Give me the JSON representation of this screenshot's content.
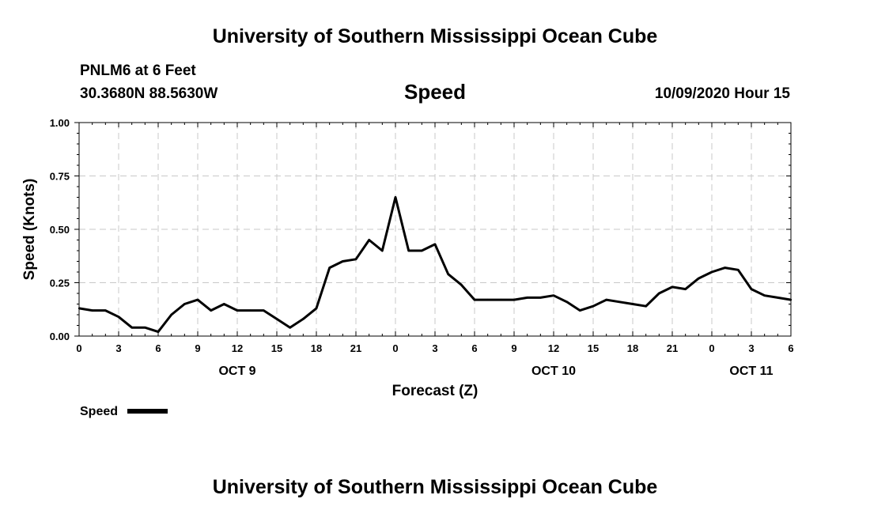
{
  "header": {
    "title_top": "University of Southern Mississippi Ocean Cube",
    "station": "PNLM6 at 6 Feet",
    "coords": "30.3680N 88.5630W",
    "variable": "Speed",
    "datetime": "10/09/2020 Hour 15",
    "title_bottom": "University of Southern Mississippi Ocean Cube"
  },
  "colors": {
    "line": "#000000",
    "grid": "#c8c8c8"
  },
  "chart_data": {
    "type": "line",
    "title": "Speed",
    "xlabel": "Forecast (Z)",
    "ylabel": "Speed (Knots)",
    "ylim": [
      0,
      1
    ],
    "xlim": [
      0,
      54
    ],
    "grid": true,
    "x_tick_labels": [
      "0",
      "3",
      "6",
      "9",
      "12",
      "15",
      "18",
      "21",
      "0",
      "3",
      "6",
      "9",
      "12",
      "15",
      "18",
      "21",
      "0",
      "3",
      "6"
    ],
    "y_tick_labels": [
      "0.00",
      "0.25",
      "0.50",
      "0.75",
      "1.00"
    ],
    "y_ticks": [
      0,
      0.25,
      0.5,
      0.75,
      1.0
    ],
    "date_labels": [
      {
        "label": "OCT 9",
        "x": 12
      },
      {
        "label": "OCT 10",
        "x": 36
      },
      {
        "label": "OCT 11",
        "x": 51
      }
    ],
    "legend": "Speed",
    "series": [
      {
        "name": "Speed",
        "x": [
          0,
          1,
          2,
          3,
          4,
          5,
          6,
          7,
          8,
          9,
          10,
          11,
          12,
          13,
          14,
          15,
          16,
          17,
          18,
          19,
          20,
          21,
          22,
          23,
          24,
          25,
          26,
          27,
          28,
          29,
          30,
          31,
          32,
          33,
          34,
          35,
          36,
          37,
          38,
          39,
          40,
          41,
          42,
          43,
          44,
          45,
          46,
          47,
          48,
          49,
          50,
          51,
          52,
          53,
          54
        ],
        "values": [
          0.13,
          0.12,
          0.12,
          0.09,
          0.04,
          0.04,
          0.02,
          0.1,
          0.15,
          0.17,
          0.12,
          0.15,
          0.12,
          0.12,
          0.12,
          0.08,
          0.04,
          0.08,
          0.13,
          0.32,
          0.35,
          0.36,
          0.45,
          0.4,
          0.65,
          0.4,
          0.4,
          0.43,
          0.29,
          0.24,
          0.17,
          0.17,
          0.17,
          0.17,
          0.18,
          0.18,
          0.19,
          0.16,
          0.12,
          0.14,
          0.17,
          0.16,
          0.15,
          0.14,
          0.2,
          0.23,
          0.22,
          0.27,
          0.3,
          0.32,
          0.31,
          0.22,
          0.19,
          0.18,
          0.17
        ]
      }
    ]
  }
}
